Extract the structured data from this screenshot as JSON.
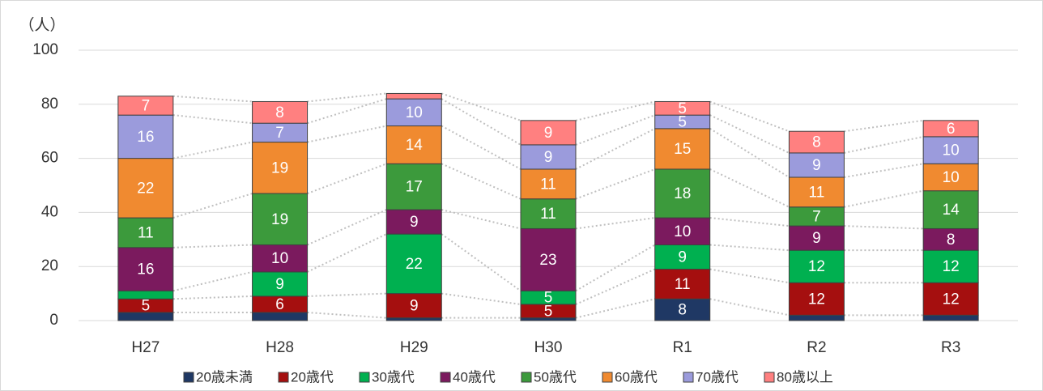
{
  "chart_data": {
    "type": "stacked_bar",
    "y_label": "（人）",
    "categories": [
      "H27",
      "H28",
      "H29",
      "H30",
      "R1",
      "R2",
      "R3"
    ],
    "series": [
      {
        "name": "20歳未満",
        "color": "#1f3864",
        "values": [
          3,
          3,
          1,
          1,
          8,
          2,
          2
        ]
      },
      {
        "name": "20歳代",
        "color": "#a50f0f",
        "values": [
          5,
          6,
          9,
          5,
          11,
          12,
          12
        ]
      },
      {
        "name": "30歳代",
        "color": "#00b050",
        "values": [
          3,
          9,
          22,
          5,
          9,
          12,
          12
        ]
      },
      {
        "name": "40歳代",
        "color": "#7b1a5e",
        "values": [
          16,
          10,
          9,
          23,
          10,
          9,
          8
        ]
      },
      {
        "name": "50歳代",
        "color": "#3c9a3c",
        "values": [
          11,
          19,
          17,
          11,
          18,
          7,
          14
        ]
      },
      {
        "name": "60歳代",
        "color": "#f08a30",
        "values": [
          22,
          19,
          14,
          11,
          15,
          11,
          10
        ]
      },
      {
        "name": "70歳代",
        "color": "#9b9bdc",
        "values": [
          16,
          7,
          10,
          9,
          5,
          9,
          10
        ]
      },
      {
        "name": "80歳以上",
        "color": "#ff8080",
        "values": [
          7,
          8,
          2,
          9,
          5,
          8,
          6
        ]
      }
    ],
    "ylim": [
      0,
      100
    ],
    "yticks": [
      0,
      20,
      40,
      60,
      80,
      100
    ],
    "grid": true,
    "legend": "bottom"
  }
}
